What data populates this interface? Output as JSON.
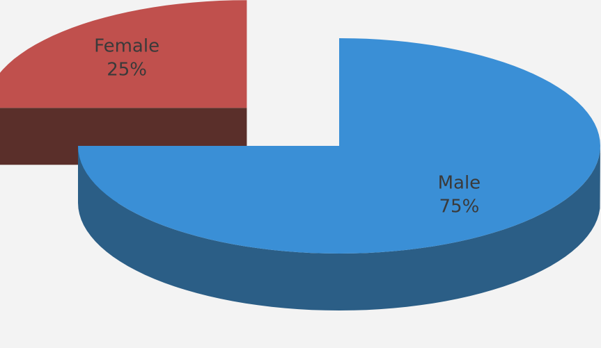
{
  "chart_data": {
    "type": "pie3d",
    "categories": [
      "Female",
      "Male"
    ],
    "values": [
      25,
      75
    ],
    "value_labels": [
      "25%",
      "75%"
    ],
    "colors": [
      "#c0504d",
      "#3a8fd6"
    ],
    "side_colors": [
      "#5a2f2a",
      "#2b5e86"
    ]
  }
}
